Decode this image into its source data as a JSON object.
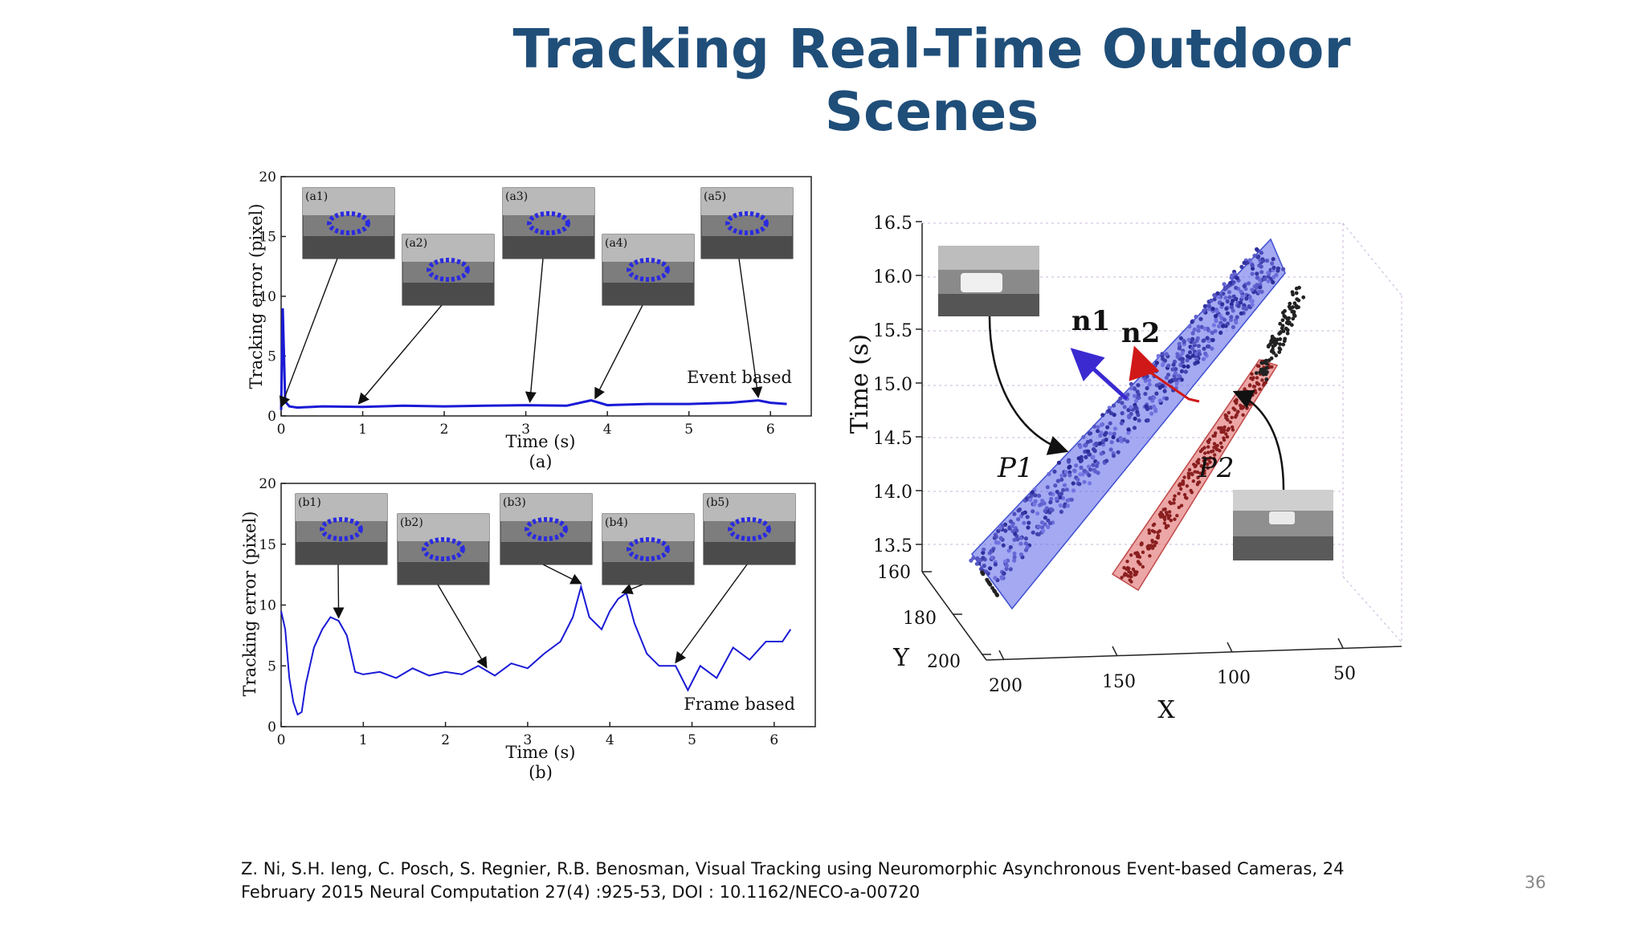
{
  "slide": {
    "title": "Tracking Real-Time Outdoor Scenes",
    "citation_line1": "Z. Ni, S.H. Ieng, C. Posch, S. Regnier, R.B. Benosman, Visual Tracking using Neuromorphic Asynchronous Event-based Cameras, 24",
    "citation_line2": "February 2015 Neural Computation 27(4) :925-53, DOI : 10.1162/NECO-a-00720",
    "page_number": "36"
  },
  "colors": {
    "title": "#1f4e79",
    "series_line": "#1a1ad6",
    "plane_p1": "#5a63e8",
    "plane_p2": "#e06a6a",
    "normal_n1": "#3a2ad0",
    "normal_n2": "#d01818"
  },
  "chart_data": [
    {
      "type": "line",
      "panel": "(a)",
      "xlabel": "Time (s)",
      "ylabel": "Tracking error (pixel)",
      "xlim": [
        0,
        6.5
      ],
      "ylim": [
        0,
        20
      ],
      "xticks": [
        "0",
        "1",
        "2",
        "3",
        "4",
        "5",
        "6"
      ],
      "yticks": [
        "0",
        "5",
        "10",
        "15",
        "20"
      ],
      "series_label": "Event based",
      "inset_labels": [
        "(a1)",
        "(a2)",
        "(a3)",
        "(a4)",
        "(a5)"
      ],
      "arrow_targets_x": [
        0.0,
        0.95,
        3.05,
        3.85,
        5.85
      ],
      "x": [
        0.0,
        0.02,
        0.05,
        0.1,
        0.2,
        0.5,
        1.0,
        1.5,
        2.0,
        2.5,
        3.0,
        3.5,
        3.8,
        4.0,
        4.5,
        5.0,
        5.5,
        5.85,
        6.0,
        6.2
      ],
      "y": [
        0.5,
        9.0,
        1.2,
        0.8,
        0.7,
        0.8,
        0.75,
        0.85,
        0.8,
        0.85,
        0.9,
        0.85,
        1.3,
        0.9,
        1.0,
        1.0,
        1.1,
        1.3,
        1.1,
        1.0
      ]
    },
    {
      "type": "line",
      "panel": "(b)",
      "xlabel": "Time (s)",
      "ylabel": "Tracking error (pixel)",
      "xlim": [
        0,
        6.5
      ],
      "ylim": [
        0,
        20
      ],
      "xticks": [
        "0",
        "1",
        "2",
        "3",
        "4",
        "5",
        "6"
      ],
      "yticks": [
        "0",
        "5",
        "10",
        "15",
        "20"
      ],
      "series_label": "Frame based",
      "inset_labels": [
        "(b1)",
        "(b2)",
        "(b3)",
        "(b4)",
        "(b5)"
      ],
      "arrow_targets_x": [
        0.7,
        2.5,
        3.65,
        4.15,
        4.8
      ],
      "x": [
        0.0,
        0.05,
        0.1,
        0.15,
        0.2,
        0.25,
        0.3,
        0.4,
        0.5,
        0.6,
        0.7,
        0.8,
        0.9,
        1.0,
        1.2,
        1.4,
        1.6,
        1.8,
        2.0,
        2.2,
        2.4,
        2.6,
        2.8,
        3.0,
        3.2,
        3.4,
        3.55,
        3.65,
        3.75,
        3.9,
        4.0,
        4.1,
        4.2,
        4.3,
        4.45,
        4.6,
        4.8,
        4.95,
        5.1,
        5.3,
        5.5,
        5.7,
        5.9,
        6.1,
        6.2
      ],
      "y": [
        9.5,
        8.0,
        4.0,
        2.0,
        1.0,
        1.2,
        3.5,
        6.5,
        8.0,
        9.0,
        8.7,
        7.5,
        4.5,
        4.3,
        4.5,
        4.0,
        4.8,
        4.2,
        4.5,
        4.3,
        5.0,
        4.2,
        5.2,
        4.8,
        6.0,
        7.0,
        9.0,
        11.5,
        9.0,
        8.0,
        9.5,
        10.5,
        11.0,
        8.5,
        6.0,
        5.0,
        5.0,
        3.0,
        5.0,
        4.0,
        6.5,
        5.5,
        7.0,
        7.0,
        8.0
      ]
    },
    {
      "type": "scatter",
      "panel": "3D event cloud",
      "zlabel": "Time (s)",
      "xlabel": "X",
      "ylabel": "Y",
      "zticks": [
        "13.5",
        "14.0",
        "14.5",
        "15.0",
        "15.5",
        "16.0",
        "16.5"
      ],
      "xticks": [
        "200",
        "150",
        "100",
        "50"
      ],
      "yticks": [
        "160",
        "180",
        "200"
      ],
      "plane_labels": [
        "P1",
        "P2"
      ],
      "normal_labels": [
        "n1",
        "n2"
      ]
    }
  ]
}
